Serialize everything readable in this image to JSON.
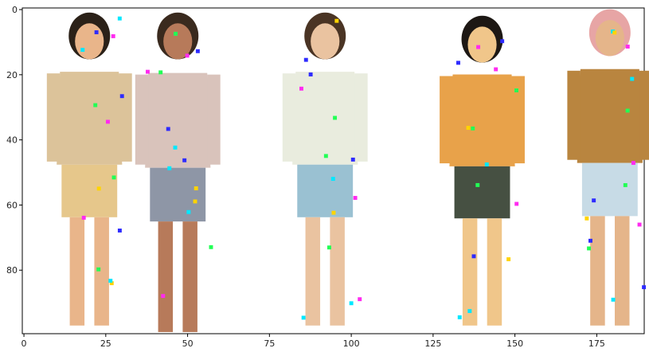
{
  "figure": {
    "description_type": "imshow",
    "x_axis": {
      "ticks": [
        0,
        25,
        50,
        75,
        100,
        125,
        150,
        175
      ],
      "range": [
        -0.5,
        189.5
      ]
    },
    "y_axis": {
      "ticks": [
        0,
        20,
        40,
        60,
        80
      ],
      "range": [
        99.5,
        -0.5
      ],
      "inverted": true
    }
  },
  "people": [
    {
      "id": "person-1",
      "x_center": 20,
      "y_top": 2,
      "y_bottom": 97,
      "top_color": "#dcc39a",
      "bottom_color": "#e6c78b",
      "skin": "#e9b58a",
      "hair": "#2b2118"
    },
    {
      "id": "person-2",
      "x_center": 47,
      "y_top": 2,
      "y_bottom": 99,
      "top_color": "#d9c3bb",
      "bottom_color": "#8e96a6",
      "skin": "#b77a5a",
      "hair": "#3a2a1e"
    },
    {
      "id": "person-3",
      "x_center": 92,
      "y_top": 2,
      "y_bottom": 97,
      "top_color": "#e9ecde",
      "bottom_color": "#9ac1d2",
      "skin": "#eac3a0",
      "hair": "#4a3424"
    },
    {
      "id": "person-4",
      "x_center": 140,
      "y_top": 3,
      "y_bottom": 97,
      "top_color": "#e8a24a",
      "bottom_color": "#465042",
      "skin": "#f0c68a",
      "hair": "#1d1814"
    },
    {
      "id": "person-5",
      "x_center": 179,
      "y_top": 1,
      "y_bottom": 97,
      "top_color": "#b9853f",
      "bottom_color": "#c7dbe6",
      "skin": "#e5b58a",
      "hair": "#e7a5a5"
    }
  ]
}
